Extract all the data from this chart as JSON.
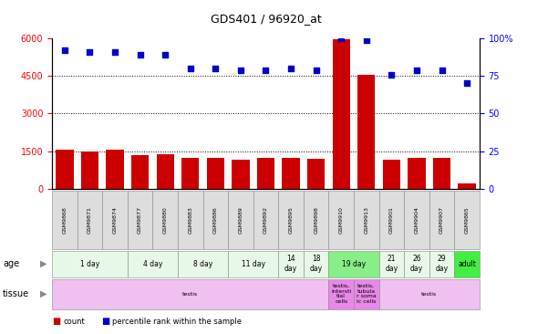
{
  "title": "GDS401 / 96920_at",
  "samples": [
    "GSM9868",
    "GSM9871",
    "GSM9874",
    "GSM9877",
    "GSM9880",
    "GSM9883",
    "GSM9886",
    "GSM9889",
    "GSM9892",
    "GSM9895",
    "GSM9898",
    "GSM9910",
    "GSM9913",
    "GSM9901",
    "GSM9904",
    "GSM9907",
    "GSM9865"
  ],
  "counts": [
    1560,
    1490,
    1545,
    1350,
    1380,
    1240,
    1215,
    1150,
    1230,
    1220,
    1210,
    5960,
    4540,
    1170,
    1230,
    1230,
    195
  ],
  "percentiles": [
    92,
    91,
    91,
    89,
    89,
    80,
    80,
    79,
    79,
    80,
    79,
    100,
    99,
    76,
    79,
    79,
    70
  ],
  "bar_color": "#cc0000",
  "dot_color": "#0000cc",
  "ylim_left": [
    0,
    6000
  ],
  "ylim_right": [
    0,
    100
  ],
  "yticks_left": [
    0,
    1500,
    3000,
    4500,
    6000
  ],
  "yticks_right": [
    0,
    25,
    50,
    75,
    100
  ],
  "yticklabels_right": [
    "0",
    "25",
    "50",
    "75",
    "100%"
  ],
  "age_groups": [
    {
      "label": "1 day",
      "cols": [
        0,
        1,
        2
      ],
      "color": "#e8f8e8"
    },
    {
      "label": "4 day",
      "cols": [
        3,
        4
      ],
      "color": "#e8f8e8"
    },
    {
      "label": "8 day",
      "cols": [
        5,
        6
      ],
      "color": "#e8f8e8"
    },
    {
      "label": "11 day",
      "cols": [
        7,
        8
      ],
      "color": "#e8f8e8"
    },
    {
      "label": "14\nday",
      "cols": [
        9
      ],
      "color": "#e8f8e8"
    },
    {
      "label": "18\nday",
      "cols": [
        10
      ],
      "color": "#e8f8e8"
    },
    {
      "label": "19 day",
      "cols": [
        11,
        12
      ],
      "color": "#88ee88"
    },
    {
      "label": "21\nday",
      "cols": [
        13
      ],
      "color": "#e8f8e8"
    },
    {
      "label": "26\nday",
      "cols": [
        14
      ],
      "color": "#e8f8e8"
    },
    {
      "label": "29\nday",
      "cols": [
        15
      ],
      "color": "#e8f8e8"
    },
    {
      "label": "adult",
      "cols": [
        16
      ],
      "color": "#44ee44"
    }
  ],
  "tissue_groups": [
    {
      "label": "testis",
      "cols": [
        0,
        1,
        2,
        3,
        4,
        5,
        6,
        7,
        8,
        9,
        10
      ],
      "color": "#f0c0f0"
    },
    {
      "label": "testis,\nintersti\ntial\ncells",
      "cols": [
        11
      ],
      "color": "#e888e8"
    },
    {
      "label": "testis,\ntubula\nr soma\nic cells",
      "cols": [
        12
      ],
      "color": "#e888e8"
    },
    {
      "label": "testis",
      "cols": [
        13,
        14,
        15,
        16
      ],
      "color": "#f0c0f0"
    }
  ],
  "legend_count_color": "#cc0000",
  "legend_dot_color": "#0000cc",
  "background_color": "#ffffff"
}
